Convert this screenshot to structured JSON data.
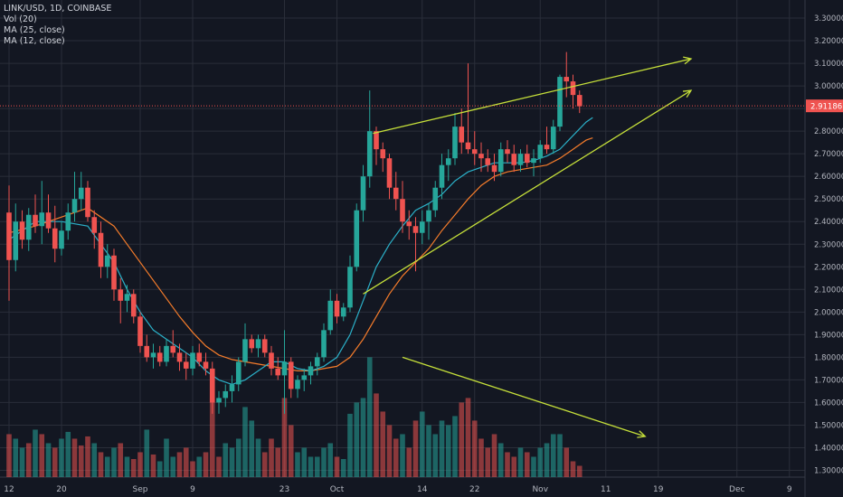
{
  "legend": {
    "symbol": "LINK/USD, 1D, COINBASE",
    "vol": "Vol (20)",
    "ma25": "MA (25, close)",
    "ma12": "MA (12, close)"
  },
  "colors": {
    "background": "#131722",
    "grid": "#2a2e39",
    "up": "#26a69a",
    "down": "#ef5350",
    "up_volume": "#26a69a",
    "down_volume": "#ef5350",
    "ma25": "#f57c2b",
    "ma12": "#2bb0c8",
    "trendline": "#c6e03a",
    "price_label": "#ef5350"
  },
  "chart_data": {
    "type": "candlestick",
    "price_axis": {
      "ylim": [
        1.27,
        3.38
      ],
      "ticks": [
        "1.30000",
        "1.40000",
        "1.50000",
        "1.60000",
        "1.70000",
        "1.80000",
        "1.90000",
        "2.00000",
        "2.10000",
        "2.20000",
        "2.30000",
        "2.40000",
        "2.50000",
        "2.60000",
        "2.70000",
        "2.80000",
        "2.90000",
        "3.00000",
        "3.10000",
        "3.20000",
        "3.30000"
      ],
      "last_price_label": "2.91186",
      "last_price": 2.91186
    },
    "time_axis": {
      "ticks": [
        {
          "label": "12",
          "day": 0
        },
        {
          "label": "20",
          "day": 8
        },
        {
          "label": "Sep",
          "day": 20
        },
        {
          "label": "9",
          "day": 28
        },
        {
          "label": "23",
          "day": 42
        },
        {
          "label": "Oct",
          "day": 50
        },
        {
          "label": "14",
          "day": 63
        },
        {
          "label": "22",
          "day": 71
        },
        {
          "label": "Nov",
          "day": 81
        },
        {
          "label": "11",
          "day": 91
        },
        {
          "label": "19",
          "day": 99
        },
        {
          "label": "Dec",
          "day": 111
        },
        {
          "label": "9",
          "day": 119
        }
      ]
    },
    "grid": true,
    "candles": [
      [
        2.44,
        2.56,
        2.05,
        2.23
      ],
      [
        2.23,
        2.48,
        2.18,
        2.4
      ],
      [
        2.4,
        2.45,
        2.28,
        2.32
      ],
      [
        2.32,
        2.46,
        2.27,
        2.43
      ],
      [
        2.43,
        2.52,
        2.35,
        2.38
      ],
      [
        2.38,
        2.58,
        2.3,
        2.44
      ],
      [
        2.44,
        2.52,
        2.35,
        2.37
      ],
      [
        2.37,
        2.47,
        2.22,
        2.28
      ],
      [
        2.28,
        2.4,
        2.25,
        2.36
      ],
      [
        2.36,
        2.48,
        2.32,
        2.44
      ],
      [
        2.44,
        2.62,
        2.4,
        2.5
      ],
      [
        2.5,
        2.62,
        2.45,
        2.55
      ],
      [
        2.55,
        2.58,
        2.4,
        2.42
      ],
      [
        2.42,
        2.45,
        2.28,
        2.35
      ],
      [
        2.35,
        2.4,
        2.15,
        2.2
      ],
      [
        2.2,
        2.3,
        2.15,
        2.25
      ],
      [
        2.25,
        2.28,
        2.05,
        2.1
      ],
      [
        2.1,
        2.15,
        1.95,
        2.05
      ],
      [
        2.05,
        2.12,
        2.0,
        2.08
      ],
      [
        2.08,
        2.1,
        1.95,
        1.98
      ],
      [
        1.98,
        2.0,
        1.82,
        1.85
      ],
      [
        1.85,
        1.9,
        1.78,
        1.8
      ],
      [
        1.8,
        1.86,
        1.75,
        1.82
      ],
      [
        1.82,
        1.85,
        1.76,
        1.78
      ],
      [
        1.78,
        1.88,
        1.76,
        1.85
      ],
      [
        1.85,
        1.92,
        1.8,
        1.82
      ],
      [
        1.82,
        1.86,
        1.74,
        1.78
      ],
      [
        1.78,
        1.82,
        1.7,
        1.75
      ],
      [
        1.75,
        1.85,
        1.72,
        1.82
      ],
      [
        1.82,
        1.86,
        1.76,
        1.78
      ],
      [
        1.78,
        1.82,
        1.72,
        1.75
      ],
      [
        1.75,
        1.78,
        1.55,
        1.6
      ],
      [
        1.6,
        1.65,
        1.55,
        1.62
      ],
      [
        1.62,
        1.68,
        1.58,
        1.65
      ],
      [
        1.65,
        1.72,
        1.6,
        1.68
      ],
      [
        1.68,
        1.8,
        1.65,
        1.78
      ],
      [
        1.78,
        1.95,
        1.76,
        1.88
      ],
      [
        1.88,
        1.9,
        1.82,
        1.84
      ],
      [
        1.84,
        1.9,
        1.8,
        1.88
      ],
      [
        1.88,
        1.9,
        1.8,
        1.82
      ],
      [
        1.82,
        1.85,
        1.72,
        1.75
      ],
      [
        1.75,
        1.8,
        1.7,
        1.72
      ],
      [
        1.72,
        1.92,
        1.55,
        1.78
      ],
      [
        1.78,
        1.8,
        1.62,
        1.66
      ],
      [
        1.66,
        1.72,
        1.62,
        1.7
      ],
      [
        1.7,
        1.75,
        1.65,
        1.72
      ],
      [
        1.72,
        1.78,
        1.68,
        1.76
      ],
      [
        1.76,
        1.82,
        1.72,
        1.8
      ],
      [
        1.8,
        1.95,
        1.78,
        1.92
      ],
      [
        1.92,
        2.1,
        1.9,
        2.05
      ],
      [
        2.05,
        2.08,
        1.95,
        1.98
      ],
      [
        1.98,
        2.04,
        1.96,
        2.02
      ],
      [
        2.02,
        2.25,
        2.0,
        2.2
      ],
      [
        2.2,
        2.48,
        2.18,
        2.45
      ],
      [
        2.45,
        2.65,
        2.4,
        2.6
      ],
      [
        2.6,
        2.98,
        2.55,
        2.8
      ],
      [
        2.8,
        2.82,
        2.65,
        2.72
      ],
      [
        2.72,
        2.75,
        2.62,
        2.68
      ],
      [
        2.68,
        2.7,
        2.5,
        2.55
      ],
      [
        2.55,
        2.62,
        2.45,
        2.5
      ],
      [
        2.5,
        2.58,
        2.35,
        2.4
      ],
      [
        2.4,
        2.45,
        2.32,
        2.38
      ],
      [
        2.38,
        2.42,
        2.18,
        2.35
      ],
      [
        2.35,
        2.45,
        2.3,
        2.4
      ],
      [
        2.4,
        2.48,
        2.32,
        2.45
      ],
      [
        2.45,
        2.58,
        2.42,
        2.55
      ],
      [
        2.55,
        2.7,
        2.5,
        2.65
      ],
      [
        2.65,
        2.72,
        2.58,
        2.68
      ],
      [
        2.68,
        2.88,
        2.65,
        2.82
      ],
      [
        2.82,
        2.9,
        2.7,
        2.75
      ],
      [
        2.75,
        3.1,
        2.7,
        2.72
      ],
      [
        2.72,
        2.8,
        2.65,
        2.7
      ],
      [
        2.7,
        2.75,
        2.62,
        2.68
      ],
      [
        2.68,
        2.72,
        2.62,
        2.65
      ],
      [
        2.65,
        2.7,
        2.58,
        2.62
      ],
      [
        2.62,
        2.75,
        2.6,
        2.72
      ],
      [
        2.72,
        2.76,
        2.66,
        2.7
      ],
      [
        2.7,
        2.74,
        2.62,
        2.65
      ],
      [
        2.65,
        2.72,
        2.62,
        2.7
      ],
      [
        2.7,
        2.74,
        2.64,
        2.66
      ],
      [
        2.66,
        2.72,
        2.6,
        2.68
      ],
      [
        2.68,
        2.76,
        2.66,
        2.74
      ],
      [
        2.74,
        2.82,
        2.7,
        2.72
      ],
      [
        2.72,
        2.85,
        2.7,
        2.82
      ],
      [
        2.82,
        3.05,
        2.8,
        3.04
      ],
      [
        3.04,
        3.15,
        2.95,
        3.02
      ],
      [
        3.02,
        3.05,
        2.9,
        2.96
      ],
      [
        2.96,
        2.98,
        2.88,
        2.91
      ]
    ],
    "volumes": [
      [
        1.46,
        0
      ],
      [
        1.44,
        1
      ],
      [
        1.4,
        1
      ],
      [
        1.42,
        0
      ],
      [
        1.48,
        1
      ],
      [
        1.46,
        0
      ],
      [
        1.42,
        1
      ],
      [
        1.4,
        0
      ],
      [
        1.44,
        1
      ],
      [
        1.47,
        1
      ],
      [
        1.44,
        0
      ],
      [
        1.41,
        0
      ],
      [
        1.45,
        0
      ],
      [
        1.42,
        1
      ],
      [
        1.38,
        0
      ],
      [
        1.36,
        1
      ],
      [
        1.4,
        1
      ],
      [
        1.42,
        0
      ],
      [
        1.36,
        1
      ],
      [
        1.35,
        0
      ],
      [
        1.38,
        0
      ],
      [
        1.48,
        1
      ],
      [
        1.37,
        0
      ],
      [
        1.34,
        1
      ],
      [
        1.44,
        1
      ],
      [
        1.36,
        1
      ],
      [
        1.38,
        0
      ],
      [
        1.4,
        0
      ],
      [
        1.34,
        0
      ],
      [
        1.36,
        1
      ],
      [
        1.38,
        0
      ],
      [
        1.62,
        0
      ],
      [
        1.36,
        0
      ],
      [
        1.42,
        1
      ],
      [
        1.4,
        1
      ],
      [
        1.44,
        1
      ],
      [
        1.58,
        1
      ],
      [
        1.52,
        1
      ],
      [
        1.44,
        1
      ],
      [
        1.38,
        0
      ],
      [
        1.44,
        0
      ],
      [
        1.4,
        0
      ],
      [
        1.62,
        0
      ],
      [
        1.5,
        0
      ],
      [
        1.38,
        1
      ],
      [
        1.4,
        1
      ],
      [
        1.36,
        1
      ],
      [
        1.36,
        1
      ],
      [
        1.4,
        1
      ],
      [
        1.42,
        1
      ],
      [
        1.36,
        0
      ],
      [
        1.35,
        1
      ],
      [
        1.55,
        1
      ],
      [
        1.6,
        1
      ],
      [
        1.62,
        1
      ],
      [
        1.8,
        1
      ],
      [
        1.64,
        0
      ],
      [
        1.56,
        0
      ],
      [
        1.5,
        0
      ],
      [
        1.44,
        0
      ],
      [
        1.46,
        1
      ],
      [
        1.4,
        0
      ],
      [
        1.52,
        0
      ],
      [
        1.56,
        1
      ],
      [
        1.5,
        1
      ],
      [
        1.46,
        1
      ],
      [
        1.52,
        1
      ],
      [
        1.5,
        1
      ],
      [
        1.54,
        1
      ],
      [
        1.6,
        0
      ],
      [
        1.62,
        0
      ],
      [
        1.52,
        0
      ],
      [
        1.44,
        0
      ],
      [
        1.4,
        0
      ],
      [
        1.46,
        0
      ],
      [
        1.42,
        1
      ],
      [
        1.38,
        0
      ],
      [
        1.36,
        0
      ],
      [
        1.4,
        1
      ],
      [
        1.38,
        0
      ],
      [
        1.36,
        1
      ],
      [
        1.4,
        1
      ],
      [
        1.42,
        1
      ],
      [
        1.46,
        1
      ],
      [
        1.46,
        1
      ],
      [
        1.4,
        0
      ],
      [
        1.34,
        0
      ],
      [
        1.32,
        0
      ]
    ],
    "ma12": [
      [
        0,
        2.32
      ],
      [
        4,
        2.4
      ],
      [
        8,
        2.4
      ],
      [
        12,
        2.38
      ],
      [
        16,
        2.22
      ],
      [
        18,
        2.1
      ],
      [
        20,
        2.0
      ],
      [
        22,
        1.92
      ],
      [
        24,
        1.88
      ],
      [
        26,
        1.84
      ],
      [
        28,
        1.8
      ],
      [
        30,
        1.74
      ],
      [
        32,
        1.7
      ],
      [
        34,
        1.68
      ],
      [
        36,
        1.7
      ],
      [
        38,
        1.74
      ],
      [
        40,
        1.78
      ],
      [
        42,
        1.78
      ],
      [
        44,
        1.75
      ],
      [
        46,
        1.74
      ],
      [
        48,
        1.76
      ],
      [
        50,
        1.8
      ],
      [
        52,
        1.9
      ],
      [
        54,
        2.05
      ],
      [
        56,
        2.2
      ],
      [
        58,
        2.3
      ],
      [
        60,
        2.38
      ],
      [
        62,
        2.45
      ],
      [
        64,
        2.48
      ],
      [
        66,
        2.52
      ],
      [
        68,
        2.58
      ],
      [
        70,
        2.62
      ],
      [
        72,
        2.64
      ],
      [
        74,
        2.66
      ],
      [
        76,
        2.66
      ],
      [
        78,
        2.66
      ],
      [
        80,
        2.67
      ],
      [
        82,
        2.69
      ],
      [
        84,
        2.72
      ],
      [
        86,
        2.78
      ],
      [
        88,
        2.84
      ],
      [
        89,
        2.86
      ]
    ],
    "ma25": [
      [
        0,
        2.35
      ],
      [
        4,
        2.38
      ],
      [
        8,
        2.42
      ],
      [
        12,
        2.46
      ],
      [
        16,
        2.38
      ],
      [
        18,
        2.3
      ],
      [
        20,
        2.22
      ],
      [
        22,
        2.14
      ],
      [
        24,
        2.06
      ],
      [
        26,
        1.98
      ],
      [
        28,
        1.91
      ],
      [
        30,
        1.85
      ],
      [
        32,
        1.81
      ],
      [
        34,
        1.79
      ],
      [
        36,
        1.78
      ],
      [
        38,
        1.77
      ],
      [
        40,
        1.76
      ],
      [
        42,
        1.75
      ],
      [
        44,
        1.74
      ],
      [
        46,
        1.74
      ],
      [
        48,
        1.75
      ],
      [
        50,
        1.76
      ],
      [
        52,
        1.8
      ],
      [
        54,
        1.88
      ],
      [
        56,
        1.98
      ],
      [
        58,
        2.08
      ],
      [
        60,
        2.16
      ],
      [
        62,
        2.22
      ],
      [
        64,
        2.28
      ],
      [
        66,
        2.36
      ],
      [
        68,
        2.43
      ],
      [
        70,
        2.5
      ],
      [
        72,
        2.56
      ],
      [
        74,
        2.6
      ],
      [
        76,
        2.62
      ],
      [
        78,
        2.63
      ],
      [
        80,
        2.64
      ],
      [
        82,
        2.65
      ],
      [
        84,
        2.68
      ],
      [
        86,
        2.72
      ],
      [
        88,
        2.76
      ],
      [
        89,
        2.77
      ]
    ],
    "trendlines": [
      {
        "from": [
          55.5,
          2.79
        ],
        "to": [
          104,
          3.12
        ]
      },
      {
        "from": [
          54,
          2.08
        ],
        "to": [
          104,
          2.98
        ]
      },
      {
        "from": [
          60,
          1.8
        ],
        "to": [
          97,
          1.45
        ]
      }
    ]
  }
}
